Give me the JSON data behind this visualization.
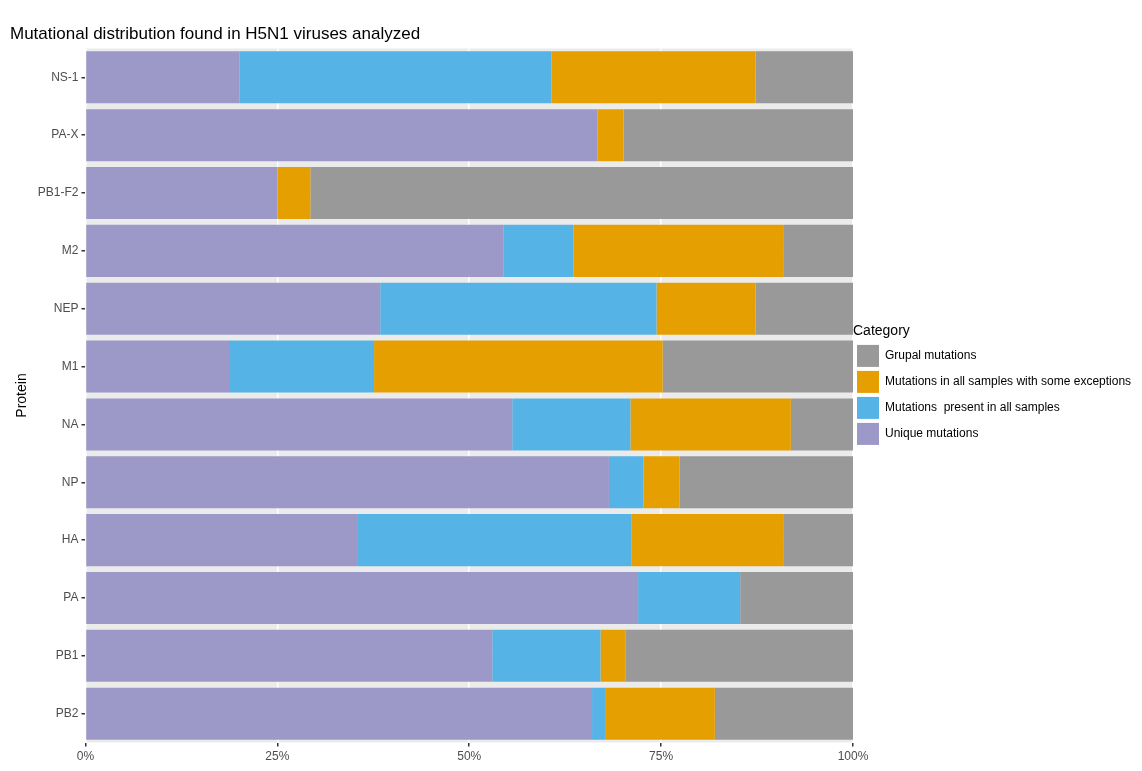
{
  "chart_data": {
    "type": "bar",
    "orientation": "horizontal",
    "stacked": true,
    "title": "Mutational distribution found in H5N1 viruses analyzed",
    "ylabel": "Protein",
    "legend_title": "Category",
    "categories": [
      "NS-1",
      "PA-X",
      "PB1-F2",
      "M2",
      "NEP",
      "M1",
      "NA",
      "NP",
      "HA",
      "PA",
      "PB1",
      "PB2"
    ],
    "series": [
      {
        "name": "Unique mutations",
        "color": "#9c98c8",
        "values": [
          20.1,
          66.7,
          25.0,
          54.5,
          38.4,
          18.7,
          55.6,
          68.2,
          35.5,
          72.0,
          53.0,
          66.0
        ]
      },
      {
        "name": "Mutations  present in all samples",
        "color": "#56b3e6",
        "values": [
          40.6,
          0,
          0,
          9.1,
          36.0,
          18.9,
          15.4,
          4.5,
          35.6,
          13.3,
          14.1,
          1.8
        ]
      },
      {
        "name": "Mutations in all samples with some exceptions",
        "color": "#e59f00",
        "values": [
          26.6,
          3.4,
          4.3,
          27.4,
          12.9,
          37.6,
          20.9,
          4.7,
          19.9,
          0,
          3.3,
          14.2
        ]
      },
      {
        "name": "Grupal mutations",
        "color": "#999999",
        "values": [
          12.7,
          29.9,
          70.7,
          9.0,
          12.7,
          24.8,
          8.1,
          22.6,
          9.0,
          14.7,
          29.6,
          18.0
        ]
      }
    ],
    "xlim": [
      0,
      100
    ],
    "xticks": [
      {
        "value": 0,
        "label": "0%"
      },
      {
        "value": 25,
        "label": "25%"
      },
      {
        "value": 50,
        "label": "50%"
      },
      {
        "value": 75,
        "label": "75%"
      },
      {
        "value": 100,
        "label": "100%"
      }
    ],
    "grid": true,
    "legend": "right"
  }
}
